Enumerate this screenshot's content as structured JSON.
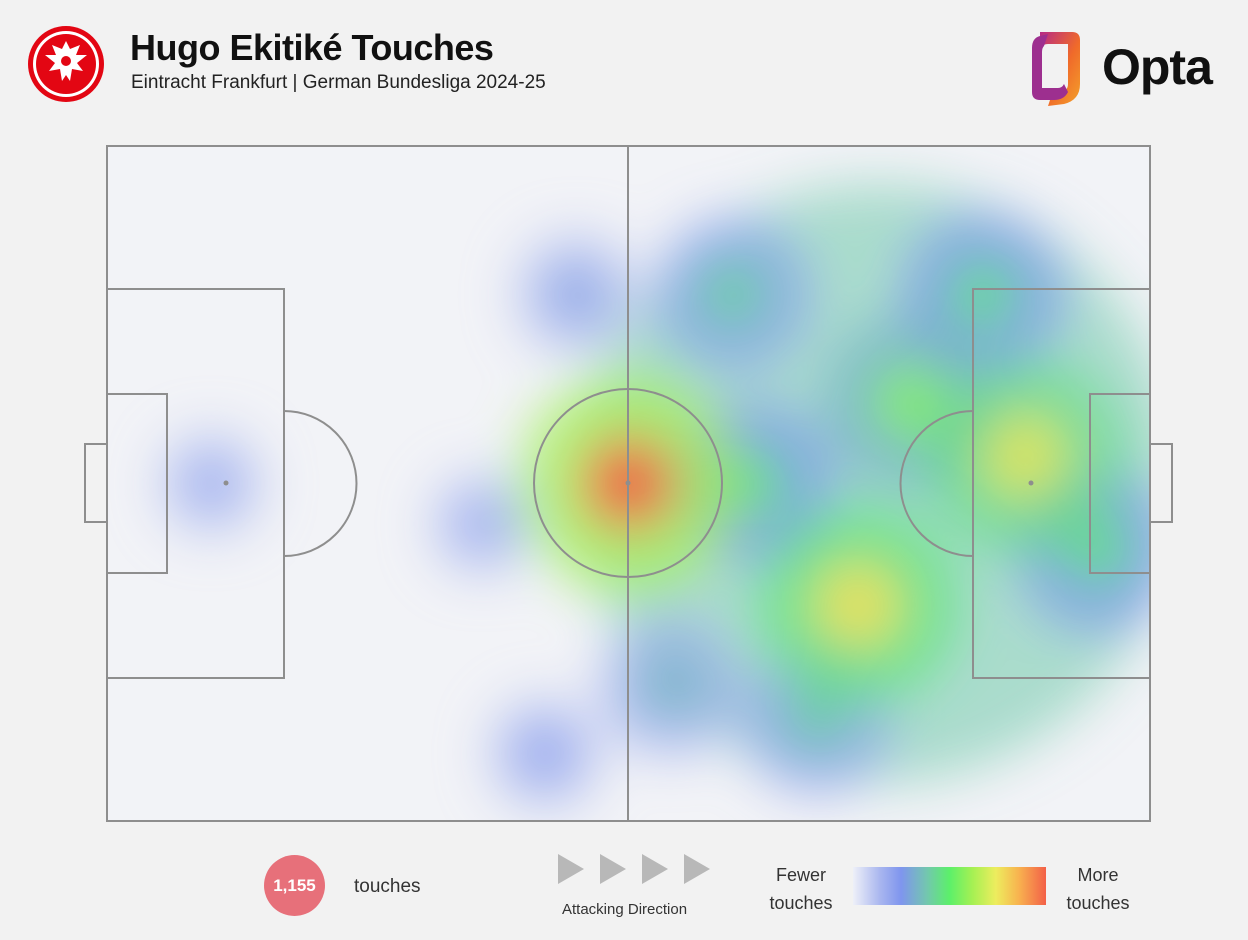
{
  "header": {
    "title": "Hugo Ekitiké Touches",
    "subtitle": "Eintracht Frankfurt | German Bundesliga 2024-25",
    "brand": "Opta",
    "crest_icon": "eagle-crest-icon",
    "brand_colors": {
      "crest_red": "#e30613",
      "opta_orange": "#f07a1a",
      "opta_purple": "#8b2c8f"
    }
  },
  "chart_data": {
    "type": "heatmap",
    "title": "Hugo Ekitiké Touches",
    "subtitle": "Eintracht Frankfurt | German Bundesliga 2024-25",
    "xlim": [
      0,
      100
    ],
    "ylim": [
      0,
      100
    ],
    "colorscale": [
      "#eef0f8",
      "#7f95ee",
      "#5cf06a",
      "#eded5e",
      "#f36048"
    ],
    "hotspots": [
      {
        "x": 50,
        "y": 50,
        "intensity": 1.0
      },
      {
        "x": 72,
        "y": 68,
        "intensity": 0.85
      },
      {
        "x": 88,
        "y": 46,
        "intensity": 0.82
      },
      {
        "x": 77,
        "y": 38,
        "intensity": 0.66
      },
      {
        "x": 62,
        "y": 50,
        "intensity": 0.55
      },
      {
        "x": 60,
        "y": 22,
        "intensity": 0.5
      },
      {
        "x": 95,
        "y": 60,
        "intensity": 0.55
      },
      {
        "x": 84,
        "y": 22,
        "intensity": 0.55
      },
      {
        "x": 68,
        "y": 85,
        "intensity": 0.46
      },
      {
        "x": 54,
        "y": 80,
        "intensity": 0.4
      },
      {
        "x": 45,
        "y": 22,
        "intensity": 0.28
      },
      {
        "x": 42,
        "y": 90,
        "intensity": 0.22
      },
      {
        "x": 36,
        "y": 56,
        "intensity": 0.14
      },
      {
        "x": 10,
        "y": 50,
        "intensity": 0.14
      }
    ],
    "total_touches": "1,155",
    "legend": {
      "low": "Fewer touches",
      "high": "More touches"
    }
  },
  "footer": {
    "count": "1,155",
    "count_label": "touches",
    "direction_label": "Attacking Direction",
    "scale_low_line1": "Fewer",
    "scale_low_line2": "touches",
    "scale_high_line1": "More",
    "scale_high_line2": "touches"
  }
}
